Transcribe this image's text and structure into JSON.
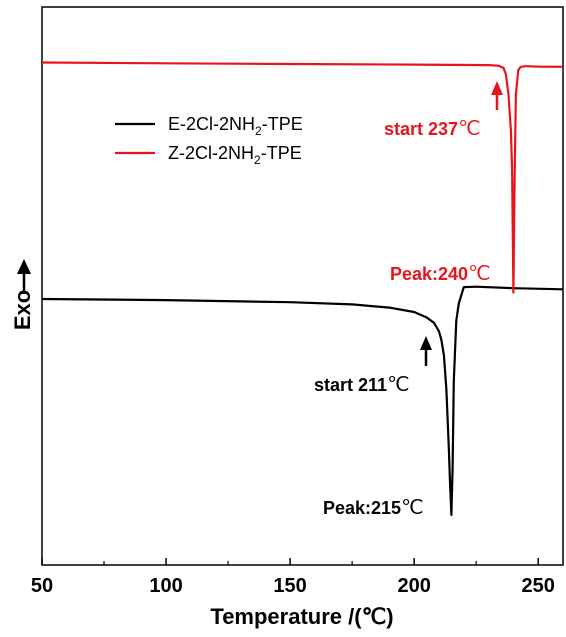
{
  "chart_data": {
    "type": "line",
    "xlabel": "Temperature /(℃)",
    "ylabel": "Exo",
    "xlim": [
      50,
      260
    ],
    "xticks": [
      50,
      100,
      150,
      200,
      250
    ],
    "y_ticks_shown": false,
    "grid": false,
    "legend_position": "top-left",
    "series": [
      {
        "name": "E-2Cl-2NH2-TPE",
        "legend_parts": [
          "E-2Cl-2NH",
          "2",
          "-TPE"
        ],
        "color": "#000000",
        "x": [
          50,
          100,
          150,
          175,
          190,
          200,
          205,
          208,
          210,
          211,
          212,
          213,
          214,
          214.5,
          215,
          215.5,
          216,
          217,
          218,
          220,
          225,
          240,
          260
        ],
        "y": [
          0.0,
          -0.005,
          -0.015,
          -0.025,
          -0.04,
          -0.06,
          -0.085,
          -0.11,
          -0.15,
          -0.19,
          -0.26,
          -0.42,
          -0.7,
          -0.86,
          -1.0,
          -0.78,
          -0.38,
          -0.1,
          -0.02,
          0.055,
          0.057,
          0.05,
          0.045
        ]
      },
      {
        "name": "Z-2Cl-2NH2-TPE",
        "legend_parts": [
          "Z-2Cl-2NH",
          "2",
          "-TPE"
        ],
        "color": "#e8141c",
        "x": [
          50,
          100,
          150,
          200,
          230,
          234,
          236,
          237,
          238,
          239,
          239.5,
          240,
          240.5,
          241,
          242,
          243,
          245,
          250,
          260
        ],
        "y": [
          1.095,
          1.091,
          1.088,
          1.085,
          1.083,
          1.08,
          1.07,
          1.04,
          0.95,
          0.78,
          0.6,
          0.03,
          0.55,
          0.95,
          1.06,
          1.075,
          1.078,
          1.076,
          1.075
        ]
      }
    ],
    "annotations": [
      {
        "label_bold": "start 237",
        "unit": "℃",
        "color": "#e8141c",
        "arrow": "up"
      },
      {
        "label_bold": "Peak:240",
        "unit": "℃",
        "color": "#e8141c"
      },
      {
        "label_bold": "start 211",
        "unit": "℃",
        "color": "#000000",
        "arrow": "up"
      },
      {
        "label_bold": "Peak:215",
        "unit": "℃",
        "color": "#000000"
      }
    ]
  }
}
